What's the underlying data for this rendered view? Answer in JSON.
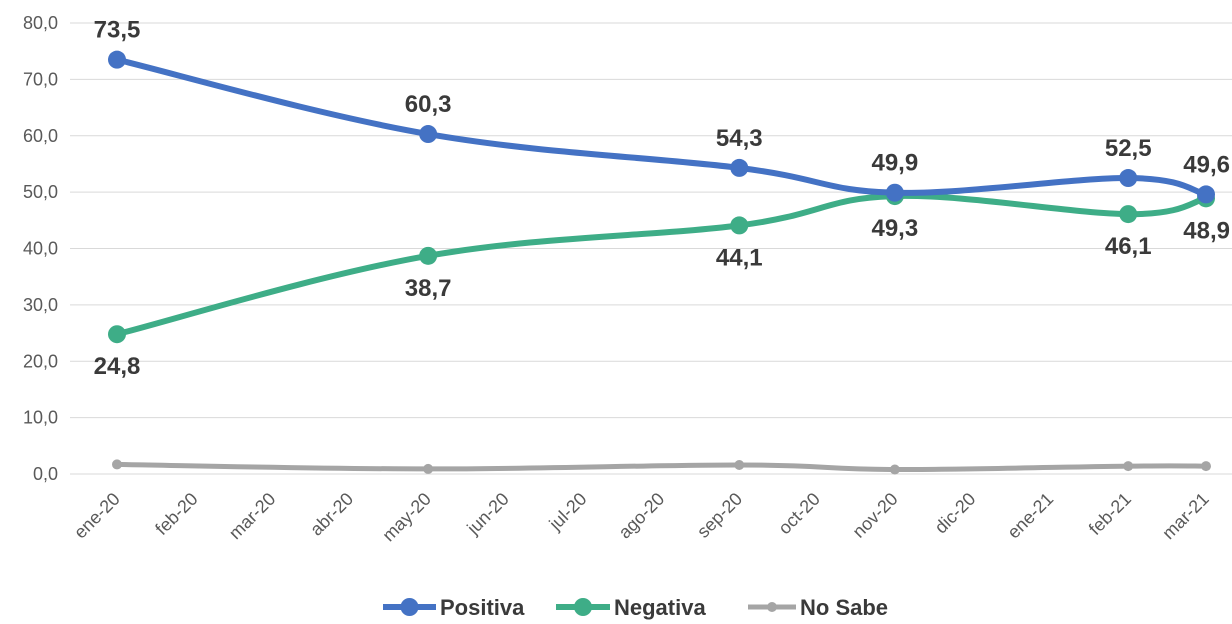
{
  "chart_data": {
    "type": "line",
    "categories": [
      "ene-20",
      "feb-20",
      "mar-20",
      "abr-20",
      "may-20",
      "jun-20",
      "jul-20",
      "ago-20",
      "sep-20",
      "oct-20",
      "nov-20",
      "dic-20",
      "ene-21",
      "feb-21",
      "mar-21"
    ],
    "y_tick_labels": [
      "0,0",
      "10,0",
      "20,0",
      "30,0",
      "40,0",
      "50,0",
      "60,0",
      "70,0",
      "80,0"
    ],
    "ylim": [
      0,
      80
    ],
    "grid": "horizontal",
    "legend_position": "bottom",
    "series": [
      {
        "name": "Positiva",
        "color": "#4472c4",
        "points": [
          {
            "x": "ene-20",
            "y": 73.5,
            "label": "73,5"
          },
          {
            "x": "may-20",
            "y": 60.3,
            "label": "60,3"
          },
          {
            "x": "sep-20",
            "y": 54.3,
            "label": "54,3"
          },
          {
            "x": "nov-20",
            "y": 49.9,
            "label": "49,9"
          },
          {
            "x": "feb-21",
            "y": 52.5,
            "label": "52,5"
          },
          {
            "x": "mar-21",
            "y": 49.6,
            "label": "49,6"
          }
        ]
      },
      {
        "name": "Negativa",
        "color": "#3ead87",
        "points": [
          {
            "x": "ene-20",
            "y": 24.8,
            "label": "24,8"
          },
          {
            "x": "may-20",
            "y": 38.7,
            "label": "38,7"
          },
          {
            "x": "sep-20",
            "y": 44.1,
            "label": "44,1"
          },
          {
            "x": "nov-20",
            "y": 49.3,
            "label": "49,3"
          },
          {
            "x": "feb-21",
            "y": 46.1,
            "label": "46,1"
          },
          {
            "x": "mar-21",
            "y": 48.9,
            "label": "48,9"
          }
        ]
      },
      {
        "name": "No Sabe",
        "color": "#a5a5a5",
        "points": [
          {
            "x": "ene-20",
            "y": 1.7
          },
          {
            "x": "may-20",
            "y": 0.9
          },
          {
            "x": "sep-20",
            "y": 1.6
          },
          {
            "x": "nov-20",
            "y": 0.8
          },
          {
            "x": "feb-21",
            "y": 1.4
          },
          {
            "x": "mar-21",
            "y": 1.4
          }
        ]
      }
    ]
  }
}
